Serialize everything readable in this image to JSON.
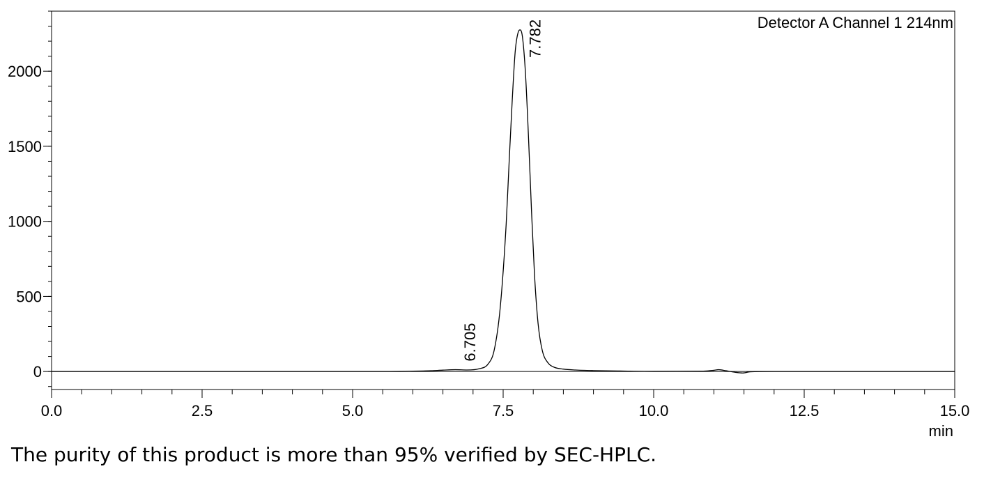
{
  "chart_data": {
    "type": "line",
    "legend": "Detector A Channel 1 214nm",
    "xunit": "min",
    "xlim": [
      0,
      15
    ],
    "ylim": [
      -120,
      2400
    ],
    "xticks": [
      0,
      2.5,
      5,
      7.5,
      10,
      12.5,
      15
    ],
    "xtick_labels": [
      "0.0",
      "2.5",
      "5.0",
      "7.5",
      "10.0",
      "12.5",
      "15.0"
    ],
    "yticks": [
      0,
      500,
      1000,
      1500,
      2000
    ],
    "ytick_labels": [
      "0",
      "500",
      "1000",
      "1500",
      "2000"
    ],
    "peaks": [
      {
        "label": "6.705",
        "rt": 6.705,
        "height": 12
      },
      {
        "label": "7.782",
        "rt": 7.782,
        "height": 2275
      }
    ],
    "series": [
      {
        "x": [
          0,
          5.6,
          6.0,
          6.3,
          6.5,
          6.705,
          6.9,
          7.1,
          7.25,
          7.35,
          7.45,
          7.55,
          7.6,
          7.65,
          7.7,
          7.75,
          7.782,
          7.82,
          7.87,
          7.92,
          7.97,
          8.02,
          8.08,
          8.15,
          8.25,
          8.35,
          8.5,
          8.7,
          9.0,
          9.5,
          10.0,
          10.8,
          11.0,
          11.08,
          11.2,
          11.35,
          11.48,
          11.6,
          12.0,
          15.0
        ],
        "y": [
          0,
          0,
          2,
          5,
          9,
          12,
          10,
          18,
          50,
          140,
          420,
          980,
          1400,
          1800,
          2130,
          2260,
          2275,
          2230,
          1990,
          1570,
          1080,
          650,
          320,
          140,
          55,
          28,
          16,
          10,
          6,
          3,
          1,
          2,
          8,
          12,
          5,
          -5,
          -10,
          -2,
          0,
          0
        ]
      }
    ]
  },
  "caption": "The purity of this product is more than 95% verified by SEC-HPLC."
}
